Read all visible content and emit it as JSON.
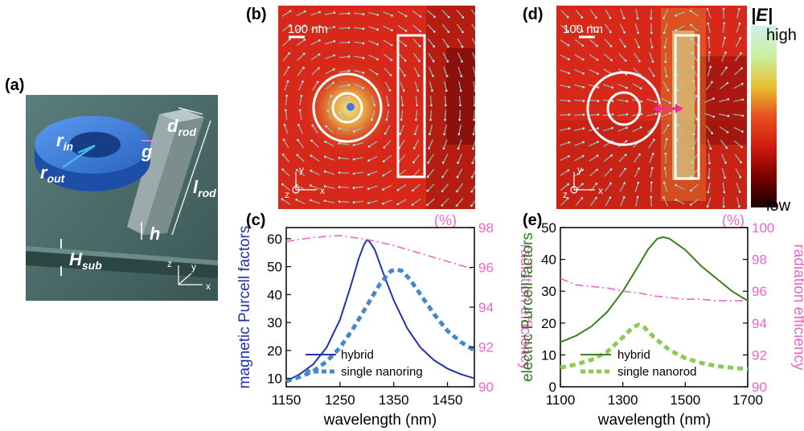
{
  "panels": {
    "a": {
      "label": "(a)",
      "annotations": {
        "r_in": "r",
        "r_in_sub": "in",
        "r_out": "r",
        "r_out_sub": "out",
        "g": "g",
        "d_rod": "d",
        "d_rod_sub": "rod",
        "l_rod": "l",
        "l_rod_sub": "rod",
        "h": "h",
        "H_sub": "H",
        "H_sub_sub": "sub",
        "axis_z": "z",
        "axis_y": "y",
        "axis_x": "x"
      },
      "colors": {
        "substrate": "#3d5c58",
        "ring": "#2f6fd0",
        "rod": "#8a9b9a"
      }
    },
    "b": {
      "label": "(b)",
      "scale_bar": "100 nm",
      "axis_y": "y",
      "axis_z": "z",
      "axis_x": "x"
    },
    "d": {
      "label": "(d)",
      "scale_bar": "100 nm",
      "axis_y": "y",
      "axis_z": "z",
      "axis_x": "x"
    },
    "colorbar": {
      "title": "|E|",
      "high": "high",
      "low": "low",
      "stops": [
        "#1a0000",
        "#7a0000",
        "#d01a10",
        "#e85020",
        "#e8c030",
        "#c8f0a0",
        "#d0f0e8"
      ]
    }
  },
  "chart_data": [
    {
      "panel_label": "(c)",
      "type": "line",
      "xlabel": "wavelength (nm)",
      "ylabel": "magnetic Purcell factors",
      "y2label": "radiation efficiency",
      "y2unit": "(%)",
      "xlim": [
        1150,
        1500
      ],
      "ylim": [
        7,
        64
      ],
      "y2lim": [
        90,
        98
      ],
      "xticks": [
        "1150",
        "1250",
        "1350",
        "1450"
      ],
      "yticks": [
        "10",
        "20",
        "30",
        "40",
        "50",
        "60"
      ],
      "y2ticks": [
        "90",
        "92",
        "94",
        "96",
        "98"
      ],
      "colors": {
        "left_axis": "#2233aa",
        "right_axis": "#ee66cc"
      },
      "legend": [
        "hybrid",
        "single nanoring"
      ],
      "series": [
        {
          "name": "hybrid",
          "axis": "left",
          "style": "solid",
          "color": "#2233aa",
          "x": [
            1150,
            1175,
            1200,
            1225,
            1250,
            1270,
            1285,
            1295,
            1300,
            1305,
            1315,
            1330,
            1350,
            1375,
            1400,
            1425,
            1450,
            1475,
            1500
          ],
          "y": [
            9,
            11.5,
            15,
            21,
            31,
            43,
            53,
            58,
            59.5,
            59,
            56,
            48,
            38,
            28,
            21,
            16.5,
            13.5,
            11.5,
            10
          ]
        },
        {
          "name": "single nanoring",
          "axis": "left",
          "style": "dashed",
          "color": "#4488cc",
          "x": [
            1150,
            1175,
            1200,
            1225,
            1250,
            1275,
            1300,
            1325,
            1345,
            1355,
            1365,
            1380,
            1400,
            1425,
            1450,
            1475,
            1500
          ],
          "y": [
            9,
            10.5,
            12.5,
            16,
            21,
            28,
            36,
            44,
            48.5,
            49,
            48.5,
            45.5,
            40,
            33,
            27,
            23,
            20
          ]
        },
        {
          "name": "",
          "axis": "right",
          "style": "dashdot",
          "color": "#ee66cc",
          "x": [
            1150,
            1175,
            1200,
            1250,
            1300,
            1350,
            1400,
            1450,
            1500
          ],
          "y": [
            97.3,
            97.4,
            97.5,
            97.6,
            97.4,
            97.1,
            96.7,
            96.3,
            95.9
          ]
        }
      ]
    },
    {
      "panel_label": "(e)",
      "type": "line",
      "xlabel": "wavelength (nm)",
      "ylabel": "electric Purcell factors",
      "y2label": "radiation efficiency",
      "y2unit": "(%)",
      "xlim": [
        1100,
        1700
      ],
      "ylim": [
        0,
        50
      ],
      "y2lim": [
        90,
        100
      ],
      "xticks": [
        "1100",
        "1300",
        "1500",
        "1700"
      ],
      "yticks": [
        "0",
        "10",
        "20",
        "30",
        "40",
        "50"
      ],
      "y2ticks": [
        "90",
        "92",
        "94",
        "96",
        "98",
        "100"
      ],
      "colors": {
        "left_axis": "#2e7a1e",
        "right_axis": "#ee66cc"
      },
      "legend": [
        "hybrid",
        "single nanorod"
      ],
      "series": [
        {
          "name": "hybrid",
          "axis": "left",
          "style": "solid",
          "color": "#3a8020",
          "x": [
            1100,
            1150,
            1200,
            1250,
            1300,
            1350,
            1380,
            1410,
            1430,
            1450,
            1500,
            1550,
            1600,
            1650,
            1700
          ],
          "y": [
            14,
            16,
            19,
            23.5,
            30,
            38,
            43,
            46.5,
            47,
            46.5,
            43,
            38,
            34,
            30,
            27
          ]
        },
        {
          "name": "single nanorod",
          "axis": "left",
          "style": "dashed",
          "color": "#88cc55",
          "x": [
            1100,
            1150,
            1200,
            1250,
            1300,
            1330,
            1350,
            1370,
            1400,
            1450,
            1500,
            1550,
            1600,
            1650,
            1700
          ],
          "y": [
            6,
            7,
            8.5,
            11,
            15.5,
            18.5,
            19.5,
            18.5,
            15.5,
            11.5,
            9,
            7.5,
            6.5,
            6,
            5.5
          ]
        },
        {
          "name": "",
          "axis": "right",
          "style": "dashdot",
          "color": "#ee66cc",
          "x": [
            1100,
            1150,
            1200,
            1250,
            1300,
            1350,
            1400,
            1450,
            1500,
            1550,
            1600,
            1650,
            1700
          ],
          "y": [
            96.8,
            96.4,
            96.3,
            96.2,
            96,
            95.9,
            95.7,
            95.6,
            95.5,
            95.5,
            95.4,
            95.4,
            95.4
          ]
        }
      ]
    }
  ]
}
